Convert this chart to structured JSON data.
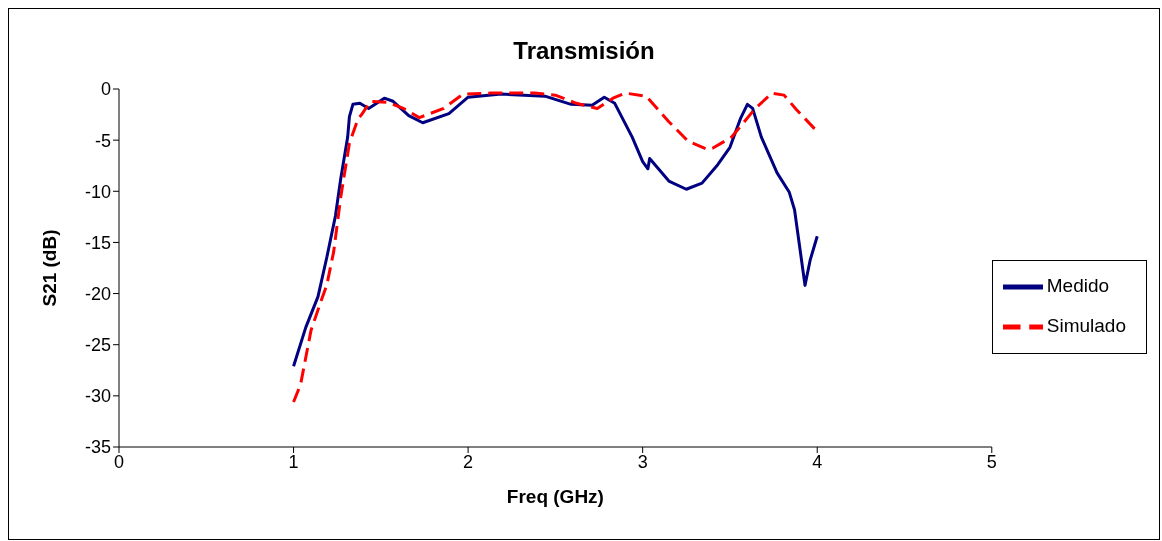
{
  "chart_data": {
    "type": "line",
    "title": "Transmisión",
    "xlabel": "Freq (GHz)",
    "ylabel": "S21 (dB)",
    "xlim": [
      0,
      5
    ],
    "xticks": [
      0,
      1,
      2,
      3,
      4,
      5
    ],
    "ylim": [
      -35,
      0
    ],
    "yticks": [
      -35,
      -30,
      -25,
      -20,
      -15,
      -10,
      -5,
      0
    ],
    "legend": "right",
    "grid": false,
    "series": [
      {
        "name": "Medido",
        "color": "#000080",
        "line_style": "solid",
        "x": [
          1.0,
          1.07,
          1.14,
          1.19,
          1.24,
          1.27,
          1.31,
          1.32,
          1.34,
          1.38,
          1.43,
          1.52,
          1.57,
          1.66,
          1.74,
          1.89,
          2.0,
          2.19,
          2.44,
          2.59,
          2.71,
          2.78,
          2.84,
          2.94,
          3.0,
          3.03,
          3.04,
          3.15,
          3.25,
          3.34,
          3.43,
          3.5,
          3.56,
          3.6,
          3.63,
          3.68,
          3.77,
          3.84,
          3.87,
          3.93,
          3.96,
          4.0
        ],
        "values": [
          -27.1,
          -23.3,
          -20.3,
          -16.5,
          -12.4,
          -8.8,
          -4.7,
          -2.7,
          -1.5,
          -1.4,
          -1.9,
          -0.9,
          -1.2,
          -2.6,
          -3.3,
          -2.4,
          -0.8,
          -0.5,
          -0.7,
          -1.5,
          -1.6,
          -0.8,
          -1.4,
          -4.7,
          -7.1,
          -7.8,
          -6.8,
          -9.0,
          -9.8,
          -9.2,
          -7.4,
          -5.7,
          -2.9,
          -1.5,
          -1.9,
          -4.7,
          -8.2,
          -10.1,
          -11.8,
          -19.2,
          -16.7,
          -14.4
        ]
      },
      {
        "name": "Simulado",
        "color": "#ff0000",
        "line_style": "dashed",
        "x": [
          1.0,
          1.04,
          1.1,
          1.16,
          1.19,
          1.23,
          1.27,
          1.32,
          1.37,
          1.39,
          1.44,
          1.54,
          1.63,
          1.72,
          1.86,
          1.97,
          2.13,
          2.38,
          2.5,
          2.62,
          2.74,
          2.83,
          2.9,
          3.02,
          3.15,
          3.26,
          3.37,
          3.4,
          3.51,
          3.64,
          3.74,
          3.81,
          3.88,
          3.98,
          4.0
        ],
        "values": [
          -30.6,
          -28.9,
          -23.6,
          -20.6,
          -19.2,
          -15.9,
          -10.6,
          -5.3,
          -2.9,
          -2.5,
          -1.2,
          -1.3,
          -1.9,
          -2.8,
          -1.9,
          -0.5,
          -0.4,
          -0.4,
          -0.6,
          -1.4,
          -1.9,
          -0.9,
          -0.4,
          -0.7,
          -3.2,
          -5.1,
          -5.9,
          -5.8,
          -4.7,
          -2.0,
          -0.4,
          -0.6,
          -2.0,
          -3.8,
          -4.0
        ]
      }
    ]
  }
}
